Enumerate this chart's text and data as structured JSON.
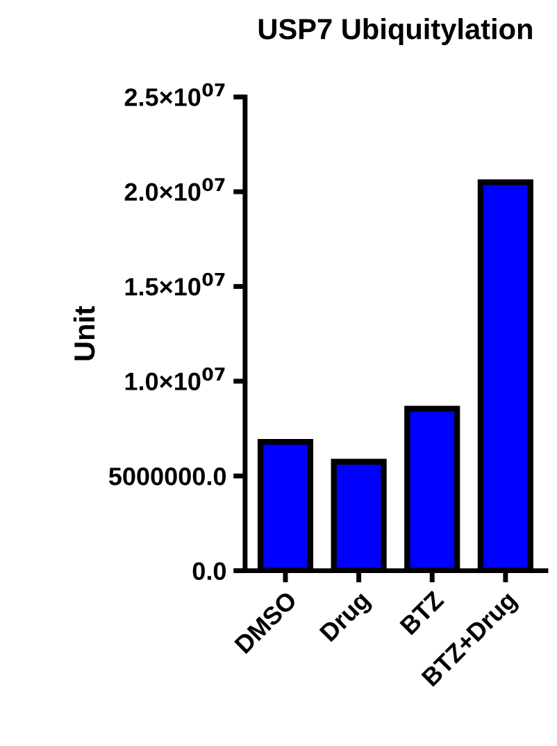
{
  "chart_data": {
    "type": "bar",
    "title": "USP7 Ubiquitylation",
    "ylabel": "Unit",
    "categories": [
      "DMSO",
      "Drug",
      "BTZ",
      "BTZ+Drug"
    ],
    "values": [
      6800000,
      5750000,
      8550000,
      20500000
    ],
    "color": "#0000ff",
    "ylim": [
      0,
      25000000
    ],
    "yticks": [
      {
        "value": 0,
        "label": "0.0"
      },
      {
        "value": 5000000,
        "label": "5000000.0"
      },
      {
        "value": 10000000,
        "label": "1.0×10$^{07}$"
      },
      {
        "value": 15000000,
        "label": "1.5×10$^{07}$"
      },
      {
        "value": 20000000,
        "label": "2.0×10$^{07}$"
      },
      {
        "value": 25000000,
        "label": "2.5×10$^{07}$"
      }
    ],
    "grid": false,
    "legend": false
  }
}
